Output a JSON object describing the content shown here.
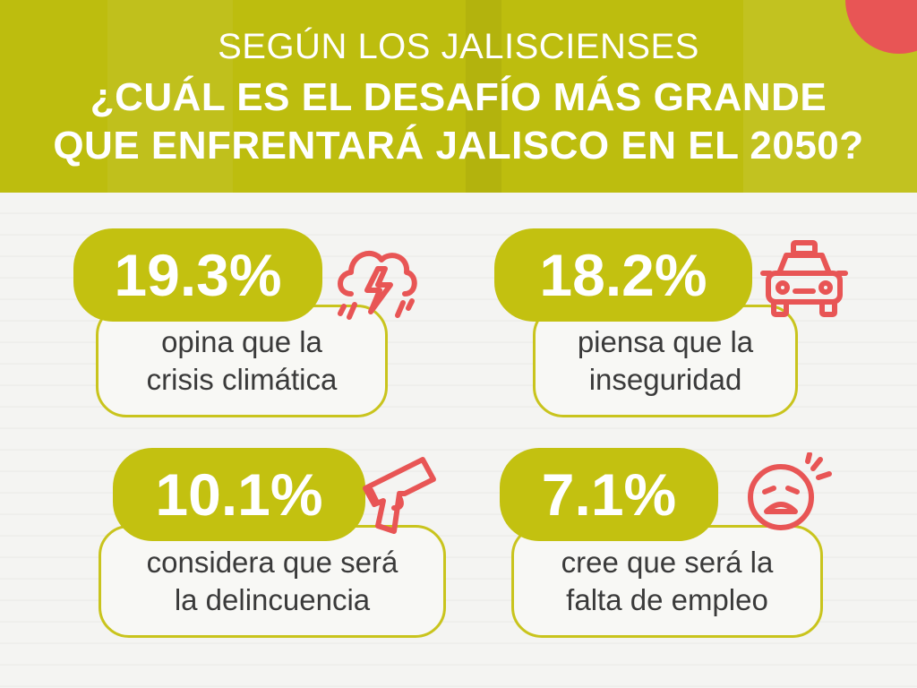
{
  "header": {
    "subtitle": "SEGÚN LOS JALISCIENSES",
    "title_line1": "¿CUÁL ES EL DESAFÍO MÁS GRANDE",
    "title_line2": "QUE ENFRENTARÁ JALISCO EN EL 2050?"
  },
  "stats": [
    {
      "percent": "19.3%",
      "line1": "opina que la",
      "line2": "crisis climática",
      "icon": "storm-cloud-icon"
    },
    {
      "percent": "18.2%",
      "line1": "piensa que la",
      "line2": "inseguridad",
      "icon": "police-car-icon"
    },
    {
      "percent": "10.1%",
      "line1": "considera que será",
      "line2": "la delincuencia",
      "icon": "gun-icon"
    },
    {
      "percent": "7.1%",
      "line1": "cree que será la",
      "line2": "falta de empleo",
      "icon": "crying-face-icon"
    }
  ],
  "colors": {
    "olive": "#c3c110",
    "header_bg": "#bdbd0e",
    "icon_red": "#e85555",
    "text": "#3a3a3a"
  }
}
